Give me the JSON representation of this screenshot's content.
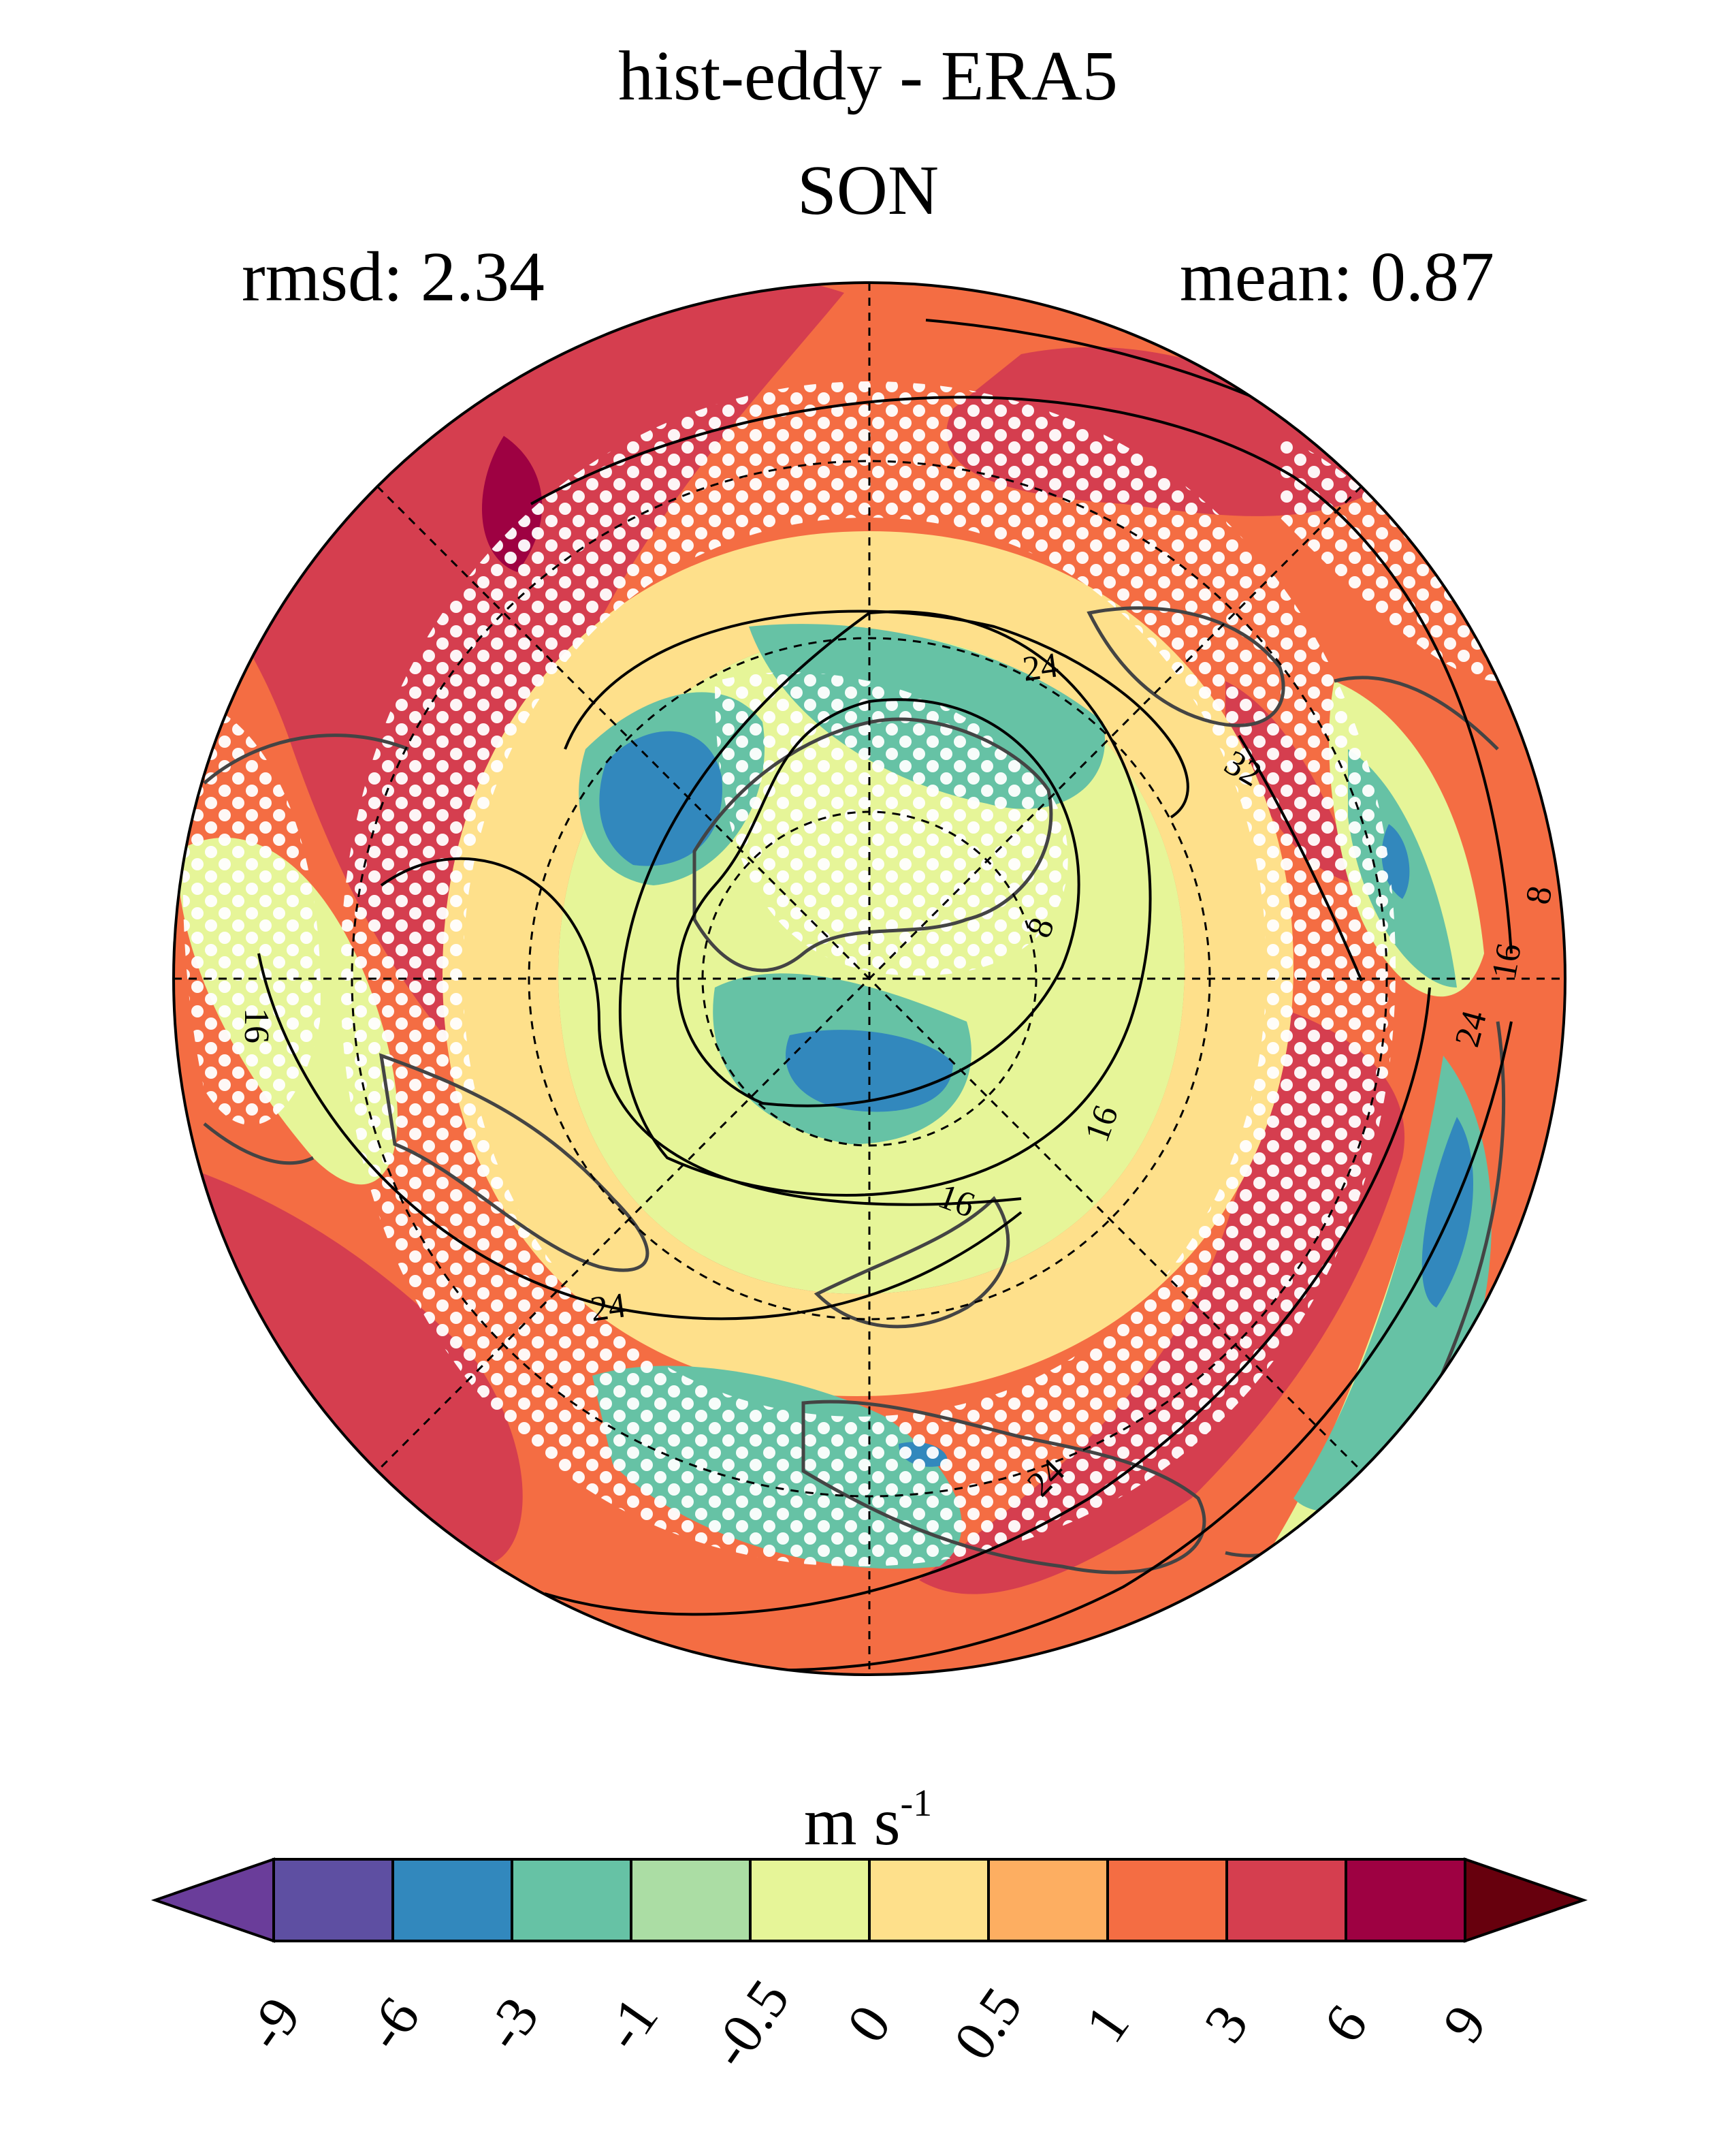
{
  "figure": {
    "title": "hist-eddy - ERA5",
    "season": "SON",
    "rmsd_label": "rmsd: 2.34",
    "mean_label": "mean: 0.87"
  },
  "map": {
    "projection": "north-polar-stereographic",
    "contour_labels": [
      "24",
      "32",
      "8",
      "16",
      "8",
      "16",
      "24",
      "16",
      "16",
      "16",
      "24",
      "24"
    ],
    "stippling": "white dots"
  },
  "colorbar": {
    "unit_main": "m s",
    "unit_exp": "-1",
    "ticks": [
      "-9",
      "-6",
      "-3",
      "-1",
      "-0.5",
      "0",
      "0.5",
      "1",
      "3",
      "6",
      "9"
    ],
    "colors": [
      "#5e4fa2",
      "#3288bd",
      "#66c2a5",
      "#abdda4",
      "#e6f598",
      "#fee08b",
      "#fdae61",
      "#f46d43",
      "#d53e4f",
      "#9e0142"
    ],
    "under_color": "#6a3d9a",
    "over_color": "#67000d"
  }
}
